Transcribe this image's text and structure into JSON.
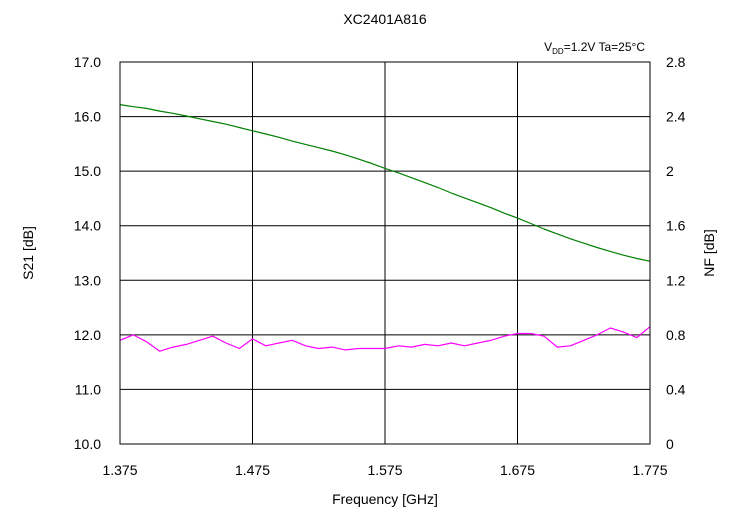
{
  "chart_data": {
    "type": "line",
    "title": "XC2401A816",
    "annotation": {
      "prefix": "V",
      "subscript": "DD",
      "suffix": "=1.2V Ta=25°C"
    },
    "xlabel": "Frequency [GHz]",
    "ylabel_left": "S21 [dB]",
    "ylabel_right": "NF [dB]",
    "xlim": [
      1.375,
      1.775
    ],
    "ylim_left": [
      10.0,
      17.0
    ],
    "ylim_right": [
      0,
      2.8
    ],
    "grid": true,
    "x_ticks": [
      "1.375",
      "1.475",
      "1.575",
      "1.675",
      "1.775"
    ],
    "y_left_ticks": [
      "17.0",
      "16.0",
      "15.0",
      "14.0",
      "13.0",
      "12.0",
      "11.0",
      "10.0"
    ],
    "y_right_ticks": [
      "2.8",
      "2.4",
      "2",
      "1.6",
      "1.2",
      "0.8",
      "0.4",
      "0"
    ],
    "series": [
      {
        "name": "S21",
        "axis": "left",
        "color": "#008000",
        "x": [
          1.375,
          1.385,
          1.395,
          1.405,
          1.415,
          1.425,
          1.435,
          1.445,
          1.455,
          1.465,
          1.475,
          1.485,
          1.495,
          1.505,
          1.515,
          1.525,
          1.535,
          1.545,
          1.555,
          1.565,
          1.575,
          1.585,
          1.595,
          1.605,
          1.615,
          1.625,
          1.635,
          1.645,
          1.655,
          1.665,
          1.675,
          1.685,
          1.695,
          1.705,
          1.715,
          1.725,
          1.735,
          1.745,
          1.755,
          1.765,
          1.775
        ],
        "values": [
          16.22,
          16.18,
          16.15,
          16.1,
          16.06,
          16.01,
          15.96,
          15.91,
          15.86,
          15.8,
          15.74,
          15.68,
          15.62,
          15.55,
          15.49,
          15.43,
          15.37,
          15.3,
          15.22,
          15.14,
          15.05,
          14.97,
          14.88,
          14.79,
          14.7,
          14.6,
          14.51,
          14.42,
          14.33,
          14.23,
          14.14,
          14.04,
          13.94,
          13.85,
          13.76,
          13.68,
          13.6,
          13.53,
          13.46,
          13.4,
          13.35
        ]
      },
      {
        "name": "NF",
        "axis": "right",
        "color": "#ff00ff",
        "x": [
          1.375,
          1.385,
          1.395,
          1.405,
          1.415,
          1.425,
          1.435,
          1.445,
          1.455,
          1.465,
          1.475,
          1.485,
          1.495,
          1.505,
          1.515,
          1.525,
          1.535,
          1.545,
          1.555,
          1.565,
          1.575,
          1.585,
          1.595,
          1.605,
          1.615,
          1.625,
          1.635,
          1.645,
          1.655,
          1.665,
          1.675,
          1.685,
          1.695,
          1.705,
          1.715,
          1.725,
          1.735,
          1.745,
          1.755,
          1.765,
          1.775
        ],
        "values": [
          0.76,
          0.8,
          0.75,
          0.68,
          0.71,
          0.73,
          0.76,
          0.79,
          0.74,
          0.7,
          0.77,
          0.72,
          0.74,
          0.76,
          0.72,
          0.7,
          0.71,
          0.69,
          0.7,
          0.7,
          0.7,
          0.72,
          0.71,
          0.73,
          0.72,
          0.74,
          0.72,
          0.74,
          0.76,
          0.79,
          0.81,
          0.81,
          0.79,
          0.71,
          0.72,
          0.76,
          0.8,
          0.85,
          0.82,
          0.78,
          0.86
        ]
      }
    ]
  }
}
